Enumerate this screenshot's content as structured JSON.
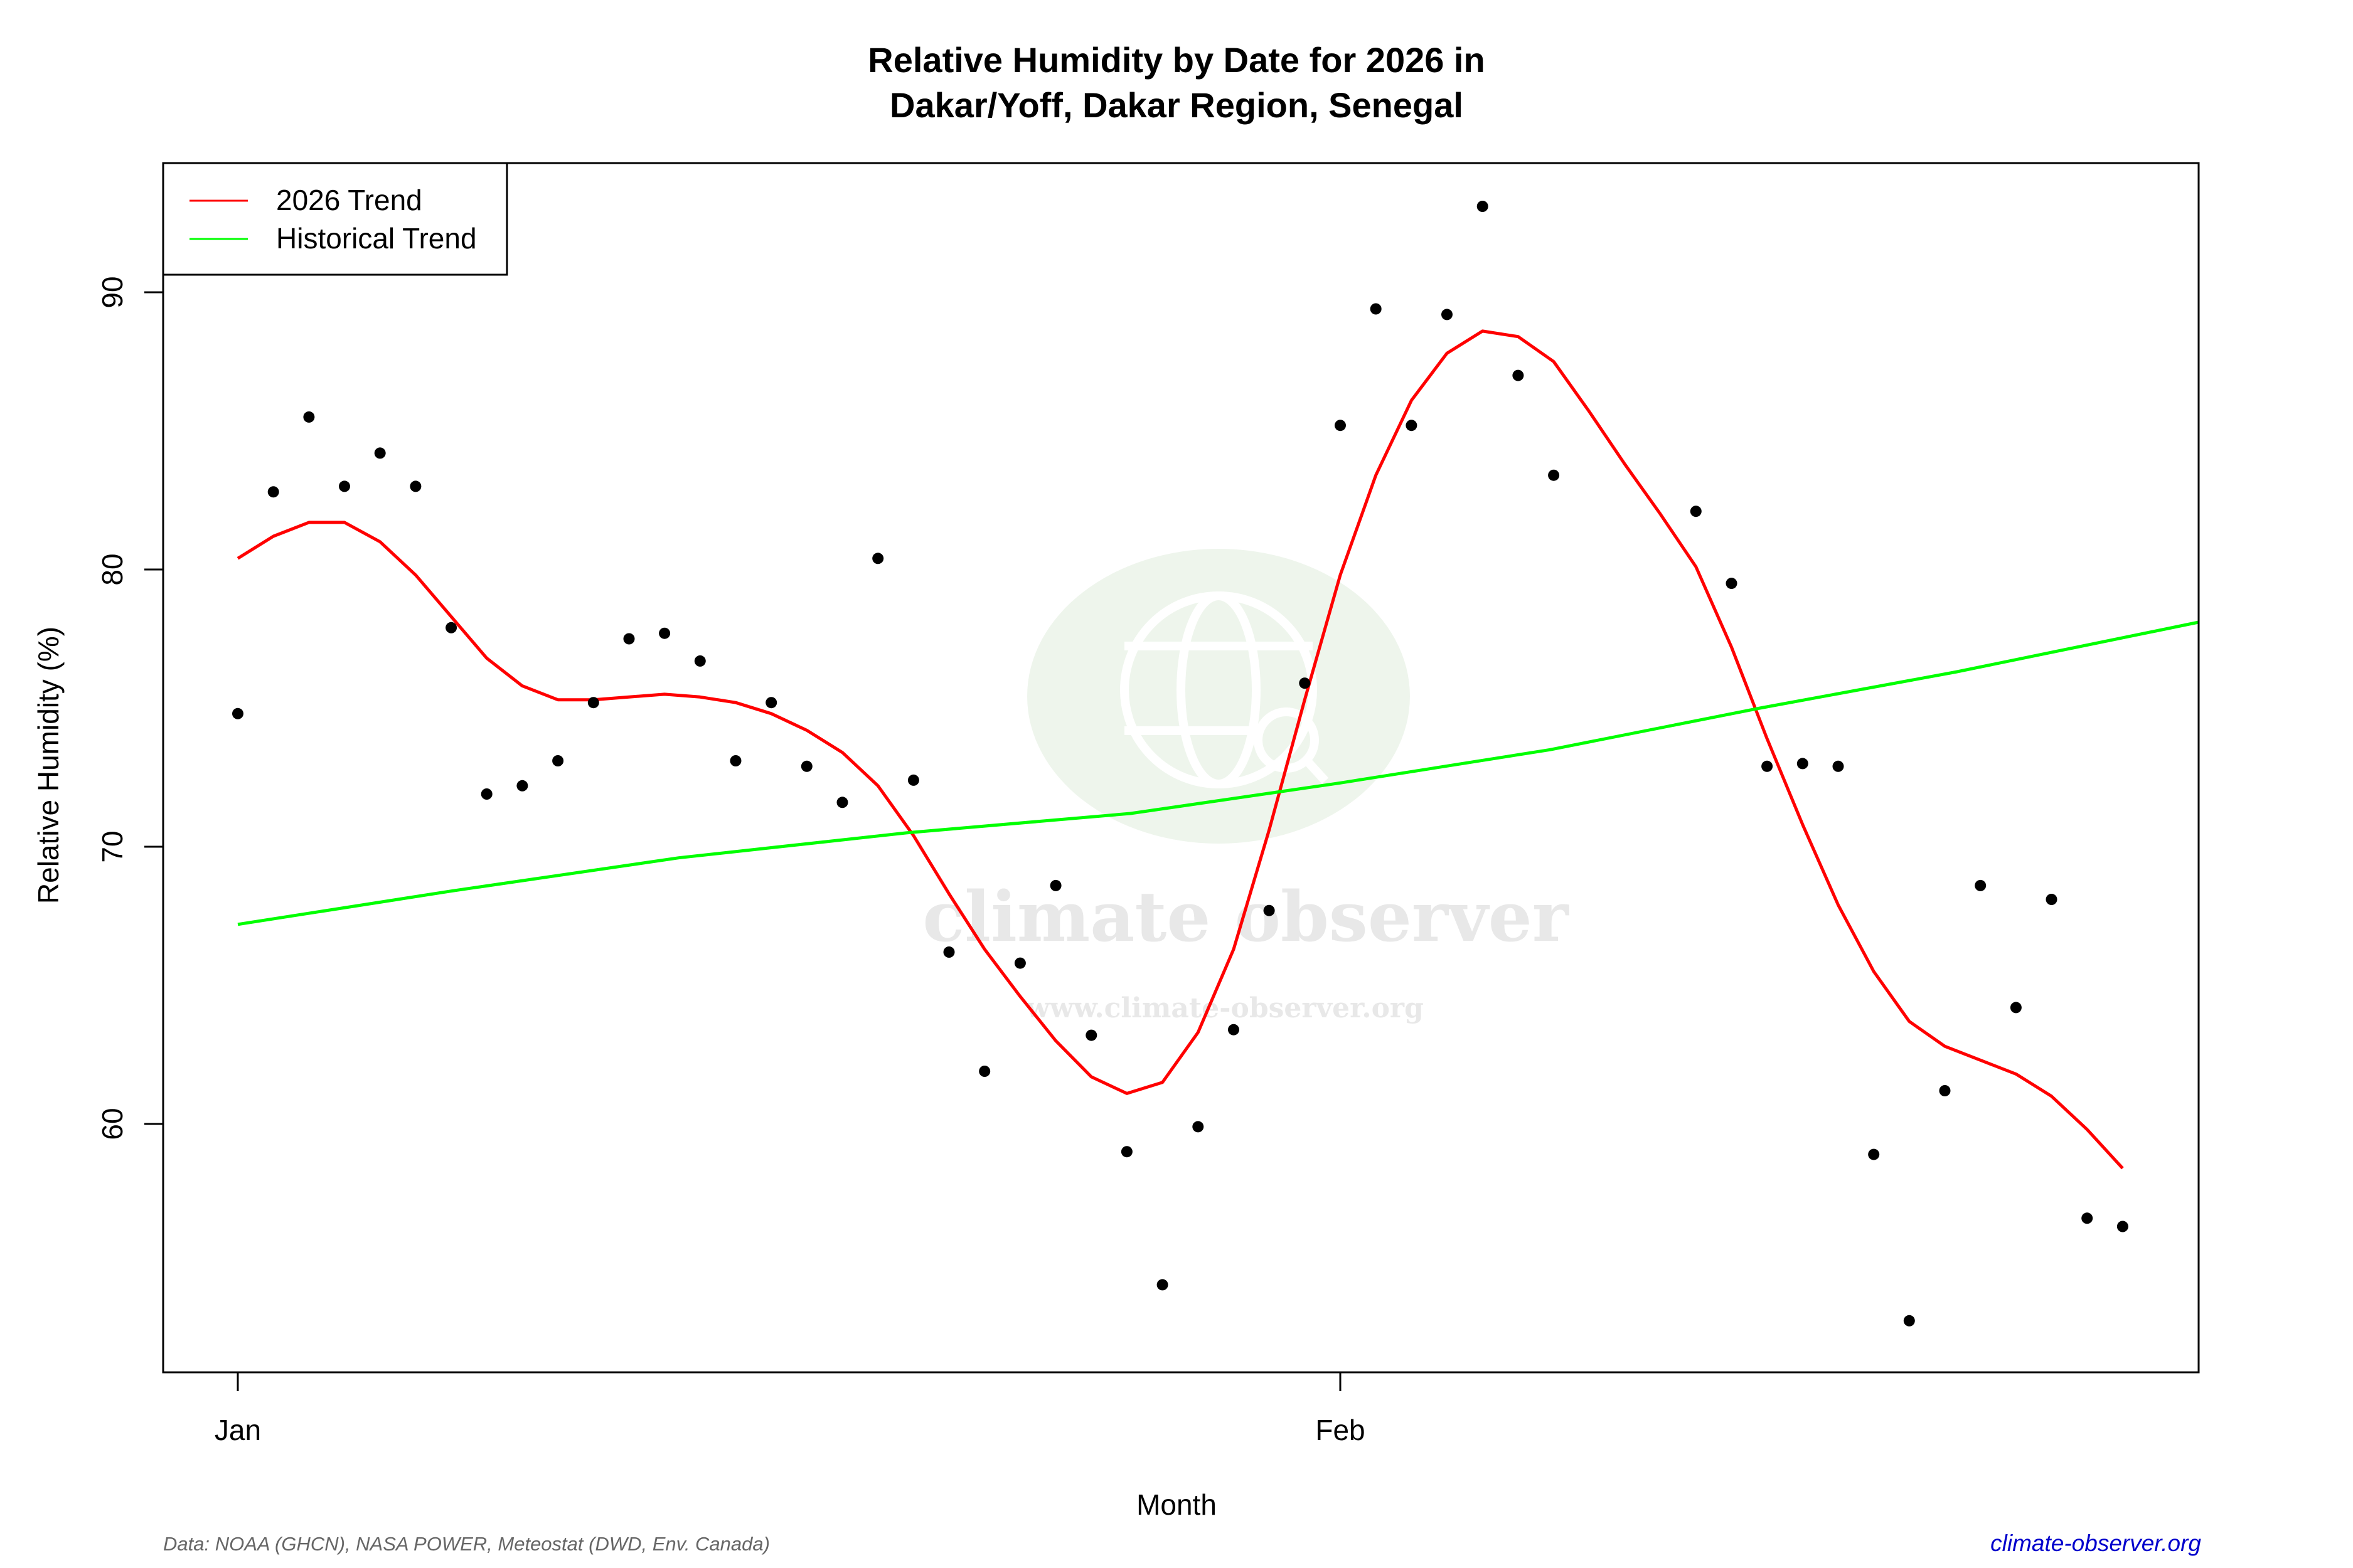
{
  "chart_data": {
    "type": "scatter",
    "title": "Relative Humidity by Date for 2026 in Dakar/Yoff, Dakar Region, Senegal",
    "title_lines": [
      "Relative Humidity by Date for 2026 in",
      "Dakar/Yoff, Dakar Region, Senegal"
    ],
    "xlabel": "Month",
    "ylabel": "Relative Humidity (%)",
    "x_ticks": [
      {
        "label": "Jan",
        "day": 1
      },
      {
        "label": "Feb",
        "day": 32
      }
    ],
    "y_ticks": [
      60,
      70,
      80,
      90
    ],
    "ylim": [
      51.2,
      94.7
    ],
    "xlim": [
      -1.1,
      56.2
    ],
    "grid": false,
    "legend_position": "top-left",
    "legend": [
      {
        "label": "2026 Trend",
        "color": "#ff0000"
      },
      {
        "label": "Historical Trend",
        "color": "#00ff00"
      }
    ],
    "points": {
      "name": "Daily observations",
      "color": "#000000",
      "day": [
        1,
        2,
        3,
        4,
        5,
        6,
        7,
        8,
        9,
        10,
        11,
        12,
        13,
        14,
        15,
        16,
        17,
        18,
        19,
        20,
        21,
        22,
        23,
        24,
        25,
        26,
        27,
        28,
        29,
        30,
        31,
        32,
        33,
        34,
        35,
        36,
        37,
        38,
        42,
        43,
        44,
        45,
        46,
        47,
        48,
        49,
        50,
        51,
        52,
        53,
        54
      ],
      "values": [
        74.8,
        82.8,
        85.5,
        83.0,
        84.2,
        83.0,
        77.9,
        71.9,
        72.2,
        73.1,
        75.2,
        77.5,
        77.7,
        76.7,
        73.1,
        75.2,
        72.9,
        71.6,
        80.4,
        72.4,
        66.2,
        61.9,
        65.8,
        68.6,
        63.2,
        59.0,
        54.2,
        59.9,
        63.4,
        67.7,
        75.9,
        85.2,
        89.4,
        85.2,
        89.2,
        93.1,
        87.0,
        83.4,
        82.1,
        79.5,
        72.9,
        73.0,
        72.9,
        58.9,
        52.9,
        61.2,
        68.6,
        64.2,
        68.1,
        56.6,
        56.3
      ]
    },
    "series": [
      {
        "name": "2026 Trend",
        "color": "#ff0000",
        "day": [
          1,
          2,
          3,
          4,
          5,
          6,
          7,
          8,
          9,
          10,
          11,
          12,
          13,
          14,
          15,
          16,
          17,
          18,
          19,
          20,
          21,
          22,
          23,
          24,
          25,
          26,
          27,
          28,
          29,
          30,
          31,
          32,
          33,
          34,
          35,
          36,
          37,
          38,
          39,
          40,
          41,
          42,
          43,
          44,
          45,
          46,
          47,
          48,
          49,
          50,
          51,
          52,
          53,
          54
        ],
        "values": [
          80.4,
          81.2,
          81.7,
          81.7,
          81.0,
          79.8,
          78.3,
          76.8,
          75.8,
          75.3,
          75.3,
          75.4,
          75.5,
          75.4,
          75.2,
          74.8,
          74.2,
          73.4,
          72.2,
          70.4,
          68.3,
          66.3,
          64.6,
          63.0,
          61.7,
          61.1,
          61.5,
          63.3,
          66.3,
          70.6,
          75.3,
          79.8,
          83.4,
          86.1,
          87.8,
          88.6,
          88.4,
          87.5,
          85.7,
          83.8,
          82.0,
          80.1,
          77.2,
          73.9,
          70.8,
          67.9,
          65.5,
          63.7,
          62.8,
          62.3,
          61.8,
          61.0,
          59.8,
          58.4
        ]
      },
      {
        "name": "Historical Trend",
        "color": "#00ff00",
        "day": [
          1,
          7,
          13.4,
          19.8,
          26.1,
          32,
          37.9,
          43.8,
          49.3,
          56.2
        ],
        "values": [
          67.2,
          68.4,
          69.6,
          70.5,
          71.2,
          72.3,
          73.5,
          75.0,
          76.3,
          78.1
        ]
      }
    ]
  },
  "footer": {
    "source": "Data: NOAA (GHCN), NASA POWER, Meteostat (DWD, Env. Canada)",
    "site": "climate-observer.org"
  },
  "watermark": {
    "name": "climate observer",
    "url": "www.climate-observer.org"
  }
}
